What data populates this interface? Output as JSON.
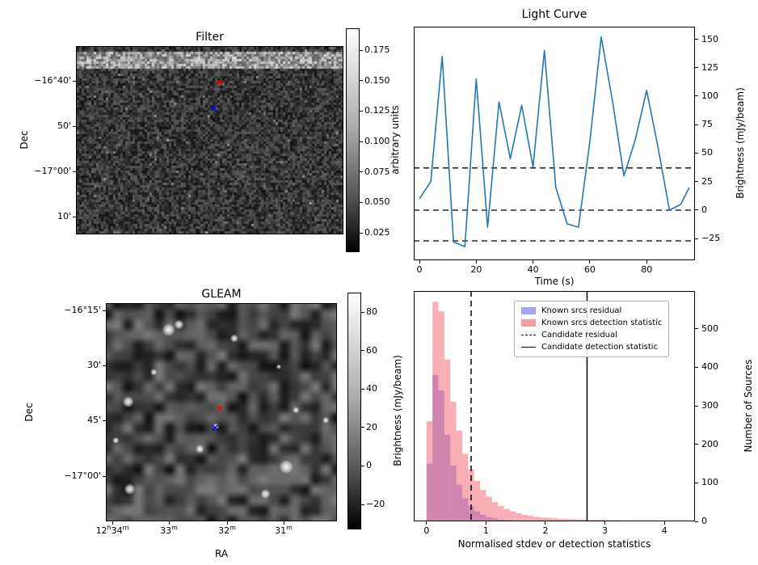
{
  "figure": {
    "background": "#ffffff"
  },
  "colors": {
    "line": "#1f77b4",
    "marker_red": "#ff0000",
    "marker_blue": "#0000ff",
    "threshold_line": "#000000"
  },
  "chart_data": [
    {
      "id": "filter",
      "type": "heatmap",
      "title": "Filter",
      "ylabel": "Dec",
      "ytick_labels": [
        "−16°40'",
        "50'",
        "−17°00'",
        "10'"
      ],
      "colorbar": {
        "label": "arbitrary units",
        "ticks": [
          "0.175",
          "0.150",
          "0.125",
          "0.100",
          "0.075",
          "0.050",
          "0.025"
        ]
      },
      "markers": [
        {
          "name": "candidate-red-x",
          "symbol": "×",
          "color": "#ff0000",
          "fx": 0.538,
          "fy": 0.189
        },
        {
          "name": "candidate-blue-x",
          "symbol": "×",
          "color": "#0000ff",
          "fx": 0.517,
          "fy": 0.33
        }
      ],
      "note": "grayscale noise image with bright horizontal band near top"
    },
    {
      "id": "light_curve",
      "type": "line",
      "title": "Light Curve",
      "xlabel": "Time (s)",
      "ylabel_right": "Brightness (mJy/beam)",
      "x": [
        0,
        4,
        8,
        12,
        16,
        20,
        24,
        28,
        32,
        36,
        40,
        44,
        48,
        52,
        56,
        60,
        64,
        68,
        72,
        76,
        80,
        84,
        88,
        92,
        95
      ],
      "y": [
        10,
        25,
        135,
        -28,
        -32,
        115,
        -15,
        95,
        45,
        92,
        38,
        140,
        20,
        -12,
        -15,
        60,
        152,
        95,
        30,
        62,
        105,
        55,
        0,
        5,
        20
      ],
      "dashed_hlines": [
        37,
        0,
        -27
      ],
      "xticks": [
        0,
        20,
        40,
        60,
        80
      ],
      "yticks": [
        150,
        125,
        100,
        75,
        50,
        25,
        0,
        -25
      ],
      "xlim": [
        -2,
        97
      ],
      "ylim": [
        -44,
        161
      ]
    },
    {
      "id": "gleam",
      "type": "heatmap",
      "title": "GLEAM",
      "xlabel": "RA",
      "ylabel": "Dec",
      "xtick_labels": [
        "12h34m",
        "33m",
        "32m",
        "31m"
      ],
      "ytick_labels": [
        "−16°15'",
        "30'",
        "45'",
        "−17°00'"
      ],
      "colorbar": {
        "label": "Brightness (mJy/beam)",
        "ticks": [
          80,
          60,
          40,
          20,
          0,
          -20
        ]
      },
      "markers": [
        {
          "name": "candidate-red-x",
          "symbol": "×",
          "color": "#ff0000",
          "fx": 0.493,
          "fy": 0.481
        },
        {
          "name": "candidate-blue-x",
          "symbol": "×",
          "color": "#0000ff",
          "fx": 0.472,
          "fy": 0.57
        }
      ],
      "note": "smooth grayscale sky map with bright point sources"
    },
    {
      "id": "histogram",
      "type": "histogram",
      "xlabel": "Normalised stdev or detection statistics",
      "ylabel_right": "Number of Sources",
      "bin_start": 0,
      "bin_width": 0.1,
      "series": [
        {
          "name": "Known srcs residual",
          "color": "#5a5ae0",
          "alpha": 0.45,
          "values": [
            150,
            380,
            340,
            225,
            145,
            95,
            60,
            40,
            26,
            17,
            11,
            8,
            5,
            4,
            3,
            2,
            2,
            1,
            1,
            1,
            0,
            0,
            0,
            0,
            0,
            0,
            0,
            0,
            0,
            0,
            0,
            0,
            0,
            0,
            0,
            0,
            0,
            0,
            0,
            0,
            0,
            0,
            0
          ]
        },
        {
          "name": "Known srcs detection statistic",
          "color": "#f24b5a",
          "alpha": 0.45,
          "values": [
            260,
            570,
            545,
            420,
            310,
            235,
            175,
            135,
            105,
            82,
            64,
            50,
            40,
            32,
            26,
            21,
            17,
            14,
            12,
            10,
            9,
            8,
            7,
            6,
            6,
            5,
            5,
            4,
            4,
            4,
            3,
            3,
            3,
            2,
            2,
            2,
            2,
            2,
            1,
            1,
            1,
            1,
            1
          ]
        }
      ],
      "vlines": [
        {
          "label": "Candidate residual",
          "style": "dashed",
          "x": 0.75
        },
        {
          "label": "Candidate detection statistic",
          "style": "solid",
          "x": 2.7
        }
      ],
      "xticks": [
        0,
        1,
        2,
        3,
        4
      ],
      "yticks": [
        0,
        100,
        200,
        300,
        400,
        500
      ],
      "xlim": [
        -0.215,
        4.515
      ],
      "ylim": [
        0,
        598
      ]
    }
  ]
}
